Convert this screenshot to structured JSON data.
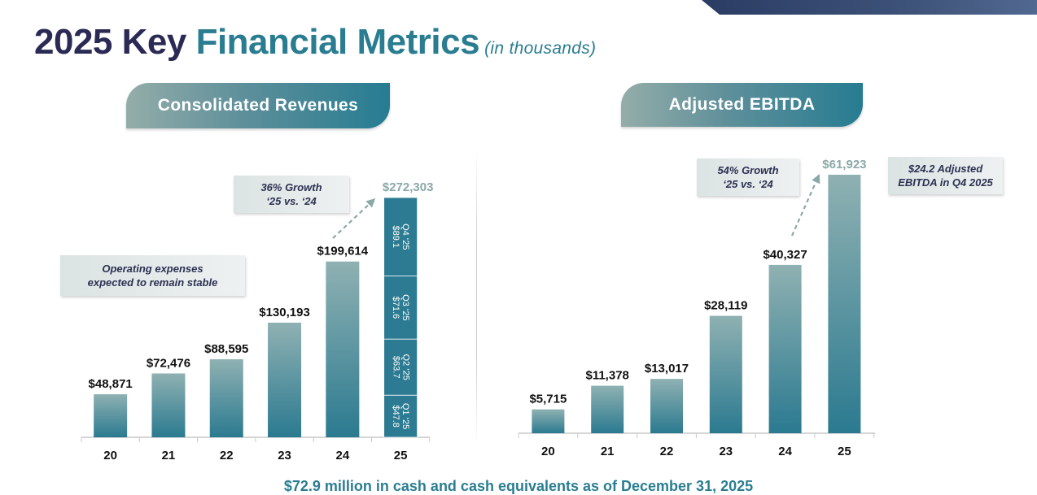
{
  "title": {
    "part1": "2025 Key ",
    "part2": "Financial Metrics",
    "subtitle": "(in thousands)"
  },
  "revenue_panel": {
    "header": "Consolidated Revenues",
    "growth_callout_line1": "36% Growth",
    "growth_callout_line2": "‘25 vs. ‘24",
    "note_line1": "Operating expenses",
    "note_line2": "expected to remain stable"
  },
  "ebitda_panel": {
    "header": "Adjusted EBITDA",
    "growth_callout_line1": "54% Growth",
    "growth_callout_line2": "‘25 vs. ‘24",
    "note_line1": "$24.2 Adjusted",
    "note_line2": "EBITDA in Q4 2025"
  },
  "footer": "$72.9 million in cash and cash equivalents as of December 31, 2025",
  "colors": {
    "navy": "#2b2a55",
    "teal": "#2a7d91",
    "bar_top": "#8fb1b2",
    "bar_bottom": "#2b7a90",
    "stack_fill": "#2d7b92",
    "highlight_label": "#8aa9a6"
  },
  "chart_data": [
    {
      "type": "bar",
      "title": "Consolidated Revenues",
      "categories": [
        "20",
        "21",
        "22",
        "23",
        "24",
        "25"
      ],
      "values": [
        48871,
        72476,
        88595,
        130193,
        199614,
        272303
      ],
      "value_labels": [
        "$48,871",
        "$72,476",
        "$88,595",
        "$130,193",
        "$199,614",
        "$272,303"
      ],
      "highlight_last": true,
      "ylim": [
        0,
        272303
      ],
      "grid": false,
      "last_bar_stack": [
        {
          "quarter": "Q1 ‘25",
          "value": 47.8,
          "label": "$47.8"
        },
        {
          "quarter": "Q2 ‘25",
          "value": 63.7,
          "label": "$63.7"
        },
        {
          "quarter": "Q3 ‘25",
          "value": 71.6,
          "label": "$71.6"
        },
        {
          "quarter": "Q4 ‘25",
          "value": 89.1,
          "label": "$89.1"
        }
      ]
    },
    {
      "type": "bar",
      "title": "Adjusted EBITDA",
      "categories": [
        "20",
        "21",
        "22",
        "23",
        "24",
        "25"
      ],
      "values": [
        5715,
        11378,
        13017,
        28119,
        40327,
        61923
      ],
      "value_labels": [
        "$5,715",
        "$11,378",
        "$13,017",
        "$28,119",
        "$40,327",
        "$61,923"
      ],
      "highlight_last": true,
      "ylim": [
        0,
        61923
      ],
      "grid": false
    }
  ]
}
